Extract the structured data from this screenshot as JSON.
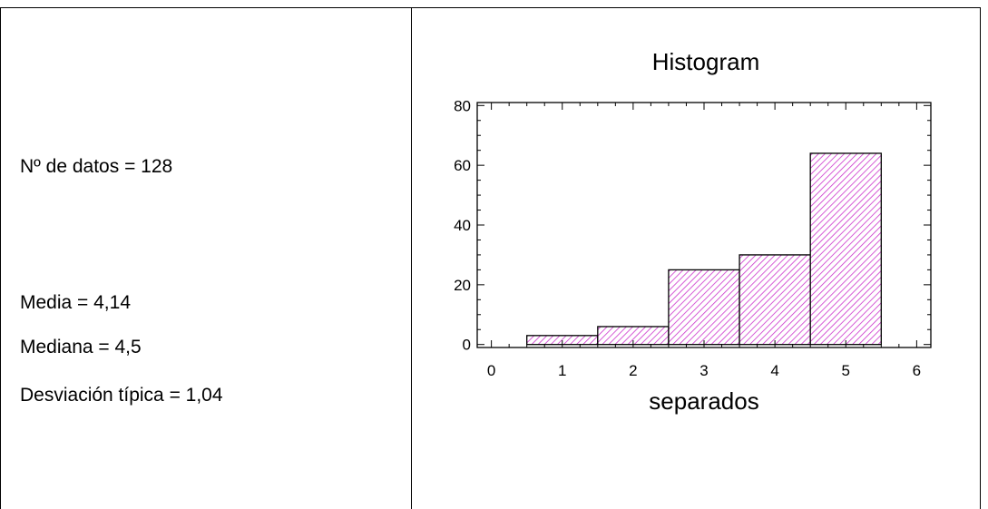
{
  "stats": {
    "n_label": "Nº de datos = 128",
    "media_label": "Media = 4,14",
    "mediana_label": "Mediana = 4,5",
    "desviacion_label": "Desviación típica = 1,04"
  },
  "chart_data": {
    "type": "bar",
    "title": "Histogram",
    "xlabel": "separados",
    "ylabel": "",
    "categories": [
      "1",
      "2",
      "3",
      "4",
      "5"
    ],
    "x": [
      1,
      2,
      3,
      4,
      5
    ],
    "values": [
      3,
      6,
      25,
      30,
      64
    ],
    "bin_width": 1,
    "xlim": [
      -0.2,
      6.2
    ],
    "ylim": [
      -1,
      81
    ],
    "xticks": [
      0,
      1,
      2,
      3,
      4,
      5,
      6
    ],
    "yticks": [
      0,
      20,
      40,
      60,
      80
    ],
    "grid": false,
    "bar_fill": "hatched",
    "bar_color": "#cc33cc",
    "bar_edge_color": "#000000"
  }
}
